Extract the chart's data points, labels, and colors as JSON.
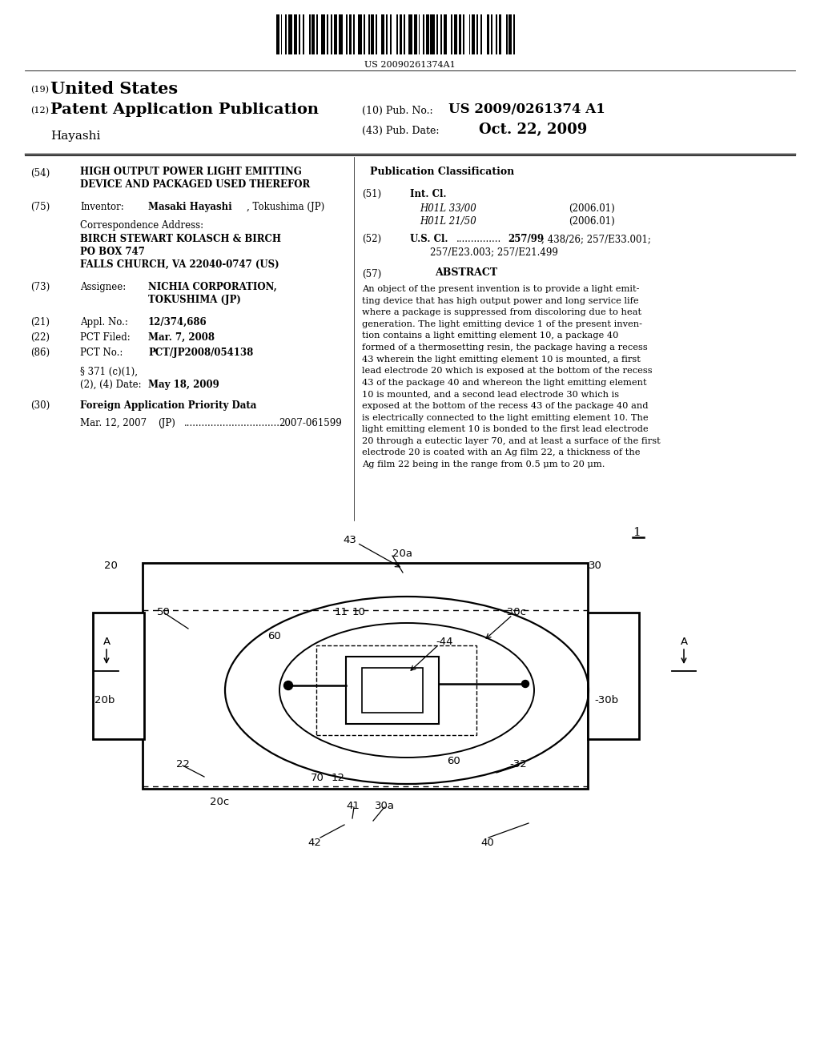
{
  "bg_color": "#ffffff",
  "barcode_text": "US 20090261374A1",
  "abstract_lines": [
    "An object of the present invention is to provide a light emit-",
    "ting device that has high output power and long service life",
    "where a package is suppressed from discoloring due to heat",
    "generation. The light emitting device 1 of the present inven-",
    "tion contains a light emitting element 10, a package 40",
    "formed of a thermosetting resin, the package having a recess",
    "43 wherein the light emitting element 10 is mounted, a first",
    "lead electrode 20 which is exposed at the bottom of the recess",
    "43 of the package 40 and whereon the light emitting element",
    "10 is mounted, and a second lead electrode 30 which is",
    "exposed at the bottom of the recess 43 of the package 40 and",
    "is electrically connected to the light emitting element 10. The",
    "light emitting element 10 is bonded to the first lead electrode",
    "20 through a eutectic layer 70, and at least a surface of the first",
    "electrode 20 is coated with an Ag film 22, a thickness of the",
    "Ag film 22 being in the range from 0.5 μm to 20 μm."
  ]
}
